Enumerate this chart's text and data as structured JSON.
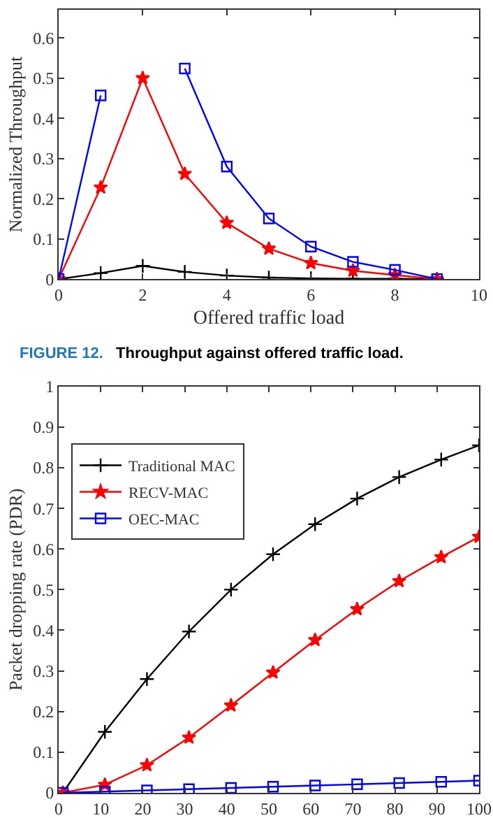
{
  "chart_data": [
    {
      "type": "line",
      "xlabel": "Offered traffic load",
      "ylabel": "Normalized Throughput",
      "x": [
        0,
        1,
        2,
        3,
        4,
        5,
        6,
        7,
        8,
        9
      ],
      "xlim": [
        0,
        10
      ],
      "xticks": [
        0,
        2,
        4,
        6,
        8,
        10
      ],
      "ylim": [
        0,
        0.67
      ],
      "yticks": [
        0,
        0.1,
        0.2,
        0.3,
        0.4,
        0.5,
        0.6
      ],
      "grid": false,
      "legend": false,
      "annotations": [
        "FIGURE 12.",
        "Throughput against offered traffic load."
      ],
      "series": [
        {
          "color": "#000000",
          "marker": "cross",
          "values": [
            0,
            0.015,
            0.033,
            0.018,
            0.009,
            0.004,
            0.002,
            0.001,
            0.001,
            0
          ]
        },
        {
          "color": "#ff0000",
          "marker": "star",
          "values": [
            0,
            0.228,
            0.5,
            0.262,
            0.14,
            0.076,
            0.04,
            0.021,
            0.01,
            0
          ]
        },
        {
          "color": "#0000ff",
          "marker": "square",
          "values": [
            0,
            0.457,
            null,
            0.524,
            0.28,
            0.151,
            0.081,
            0.043,
            0.023,
            0
          ]
        }
      ]
    },
    {
      "type": "line",
      "ylabel": "Packet dropping rate (PDR)",
      "x": [
        1,
        11,
        21,
        31,
        41,
        51,
        61,
        71,
        81,
        91,
        100
      ],
      "xlim": [
        0,
        100
      ],
      "xticks": [
        0,
        10,
        20,
        30,
        40,
        50,
        60,
        70,
        80,
        90,
        100
      ],
      "ylim": [
        0,
        1
      ],
      "yticks": [
        0,
        0.1,
        0.2,
        0.3,
        0.4,
        0.5,
        0.6,
        0.7,
        0.8,
        0.9,
        1
      ],
      "grid": false,
      "legend": "top left",
      "series": [
        {
          "name": "Traditional MAC",
          "color": "#000000",
          "marker": "cross",
          "values": [
            0,
            0.15,
            0.28,
            0.397,
            0.5,
            0.587,
            0.661,
            0.724,
            0.777,
            0.82,
            0.855
          ]
        },
        {
          "name": "RECV-MAC",
          "color": "#ff0000",
          "marker": "star",
          "values": [
            0,
            0.02,
            0.068,
            0.136,
            0.215,
            0.296,
            0.376,
            0.452,
            0.521,
            0.58,
            0.63
          ]
        },
        {
          "name": "OEC-MAC",
          "color": "#0000ff",
          "marker": "square",
          "values": [
            0,
            0.003,
            0.006,
            0.009,
            0.012,
            0.015,
            0.018,
            0.021,
            0.024,
            0.027,
            0.03
          ]
        }
      ]
    }
  ]
}
